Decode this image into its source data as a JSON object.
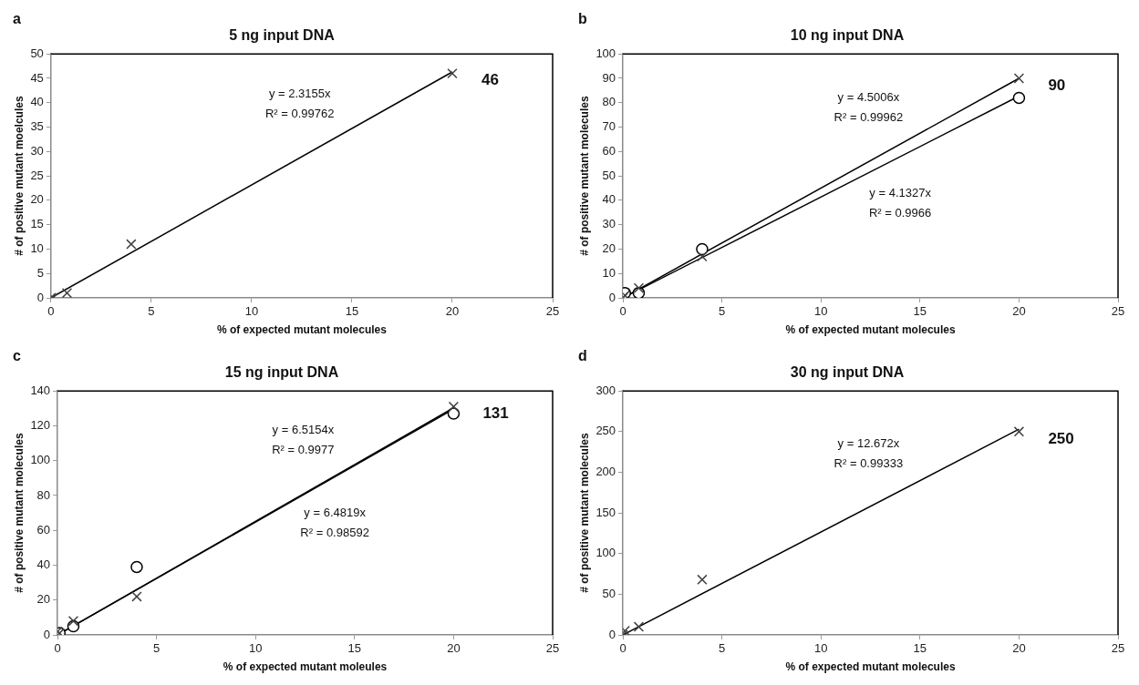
{
  "chart_data": [
    {
      "type": "scatter",
      "title": "5 ng input DNA",
      "xlabel": "% of expected mutant molecules",
      "ylabel": "# of positive mutant moelcules",
      "xlim": [
        0,
        25
      ],
      "xticks": [
        0,
        5,
        10,
        15,
        20,
        25
      ],
      "ylim": [
        0,
        50
      ],
      "yticks": [
        0,
        5,
        10,
        15,
        20,
        25,
        30,
        35,
        40,
        45,
        50
      ],
      "grid": false,
      "legend": false,
      "series": [
        {
          "color": "#404040",
          "marker": "cross",
          "x": [
            0,
            0.1,
            0.8,
            4,
            20
          ],
          "values": [
            0,
            0,
            1,
            11,
            46
          ],
          "value_labels": [
            null,
            null,
            null,
            null,
            "46"
          ]
        },
        {
          "type": "line",
          "color": "#000000",
          "marker": "none",
          "x": [
            0,
            20
          ],
          "values": [
            0,
            46.3
          ]
        }
      ],
      "annotations": [
        "a",
        "y = 2.3155x",
        "R² = 0.99762"
      ]
    },
    {
      "type": "scatter",
      "title": "10 ng input DNA",
      "xlabel": "% of expected mutant molecules",
      "ylabel": "# of positive mutant molecules",
      "xlim": [
        0,
        25
      ],
      "xticks": [
        0,
        5,
        10,
        15,
        20,
        25
      ],
      "ylim": [
        0,
        100
      ],
      "yticks": [
        0,
        10,
        20,
        30,
        40,
        50,
        60,
        70,
        80,
        90,
        100
      ],
      "grid": false,
      "legend": false,
      "series": [
        {
          "color": "#404040",
          "marker": "cross",
          "x": [
            0,
            0.1,
            0.8,
            4,
            20
          ],
          "values": [
            0,
            1,
            4,
            17,
            90
          ],
          "value_labels": [
            null,
            null,
            null,
            null,
            "90"
          ]
        },
        {
          "color": "#000000",
          "marker": "circle",
          "x": [
            0.1,
            0.8,
            4,
            20
          ],
          "values": [
            2,
            2,
            20,
            82
          ]
        },
        {
          "type": "line",
          "color": "#000000",
          "marker": "none",
          "x": [
            0,
            20
          ],
          "values": [
            0,
            90
          ]
        },
        {
          "type": "line",
          "color": "#000000",
          "marker": "none",
          "x": [
            0,
            20
          ],
          "values": [
            0,
            82.7
          ]
        }
      ],
      "annotations": [
        "b",
        "y = 4.5006x",
        "R² = 0.99962",
        "y = 4.1327x",
        "R² = 0.9966"
      ]
    },
    {
      "type": "scatter",
      "title": "15 ng input DNA",
      "xlabel": "% of expected mutant moleules",
      "ylabel": "# of positive mutant molecules",
      "xlim": [
        0,
        25
      ],
      "xticks": [
        0,
        5,
        10,
        15,
        20,
        25
      ],
      "ylim": [
        0,
        140
      ],
      "yticks": [
        0,
        20,
        40,
        60,
        80,
        100,
        120,
        140
      ],
      "grid": false,
      "legend": false,
      "series": [
        {
          "color": "#404040",
          "marker": "cross",
          "x": [
            0,
            0.1,
            0.8,
            4,
            20
          ],
          "values": [
            2,
            1,
            8,
            22,
            131
          ],
          "value_labels": [
            null,
            null,
            null,
            null,
            "131"
          ]
        },
        {
          "color": "#000000",
          "marker": "circle",
          "x": [
            0.1,
            0.8,
            4,
            20
          ],
          "values": [
            1,
            5,
            39,
            127
          ]
        },
        {
          "type": "line",
          "color": "#000000",
          "marker": "none",
          "x": [
            0,
            20
          ],
          "values": [
            0,
            130.3
          ]
        },
        {
          "type": "line",
          "color": "#000000",
          "marker": "none",
          "x": [
            0,
            20
          ],
          "values": [
            0,
            129.6
          ]
        }
      ],
      "annotations": [
        "c",
        "y = 6.5154x",
        "R² = 0.9977",
        "y = 6.4819x",
        "R² = 0.98592"
      ]
    },
    {
      "type": "scatter",
      "title": "30 ng input DNA",
      "xlabel": "% of expected mutant molecules",
      "ylabel": "# of positive mutant molecules",
      "xlim": [
        0,
        25
      ],
      "xticks": [
        0,
        5,
        10,
        15,
        20,
        25
      ],
      "ylim": [
        0,
        300
      ],
      "yticks": [
        0,
        50,
        100,
        150,
        200,
        250,
        300
      ],
      "grid": false,
      "legend": false,
      "series": [
        {
          "color": "#404040",
          "marker": "cross",
          "x": [
            0,
            0.1,
            0.8,
            4,
            20
          ],
          "values": [
            0,
            5,
            10,
            68,
            250
          ],
          "value_labels": [
            null,
            null,
            null,
            null,
            "250"
          ]
        },
        {
          "type": "line",
          "color": "#000000",
          "marker": "none",
          "x": [
            0,
            20
          ],
          "values": [
            0,
            253
          ]
        }
      ],
      "annotations": [
        "d",
        "y = 12.672x",
        "R² = 0.99333"
      ]
    }
  ]
}
